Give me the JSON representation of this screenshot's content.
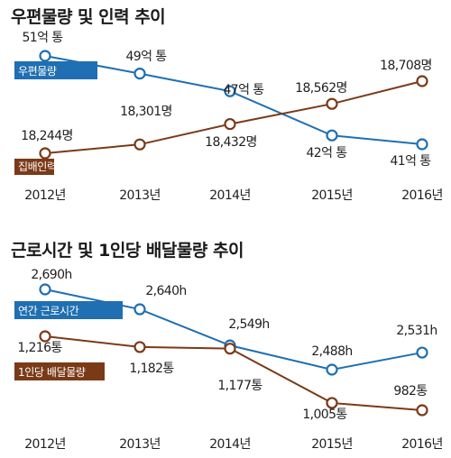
{
  "chart_data": [
    {
      "type": "line",
      "title": "우편물량 및 인력 추이",
      "categories": [
        "2012년",
        "2013년",
        "2014년",
        "2015년",
        "2016년"
      ],
      "series": [
        {
          "name": "우편물량",
          "color": "#1f6fb2",
          "values": [
            51,
            49,
            47,
            42,
            41
          ],
          "labels": [
            "51억 통",
            "49억 통",
            "47억 통",
            "42억 통",
            "41억 통"
          ]
        },
        {
          "name": "집배인력",
          "color": "#7a3a18",
          "values": [
            18244,
            18301,
            18432,
            18562,
            18708
          ],
          "labels": [
            "18,244명",
            "18,301명",
            "18,432명",
            "18,562명",
            "18,708명"
          ]
        }
      ]
    },
    {
      "type": "line",
      "title": "근로시간 및 1인당 배달물량 추이",
      "categories": [
        "2012년",
        "2013년",
        "2014년",
        "2015년",
        "2016년"
      ],
      "series": [
        {
          "name": "연간 근로시간",
          "color": "#1f6fb2",
          "values": [
            2690,
            2640,
            2549,
            2488,
            2531
          ],
          "labels": [
            "2,690h",
            "2,640h",
            "2,549h",
            "2,488h",
            "2,531h"
          ]
        },
        {
          "name": "1인당 배달물량",
          "color": "#7a3a18",
          "values": [
            1216,
            1182,
            1177,
            1005,
            982
          ],
          "labels": [
            "1,216통",
            "1,182통",
            "1,177통",
            "1,005통",
            "982통"
          ]
        }
      ]
    }
  ]
}
